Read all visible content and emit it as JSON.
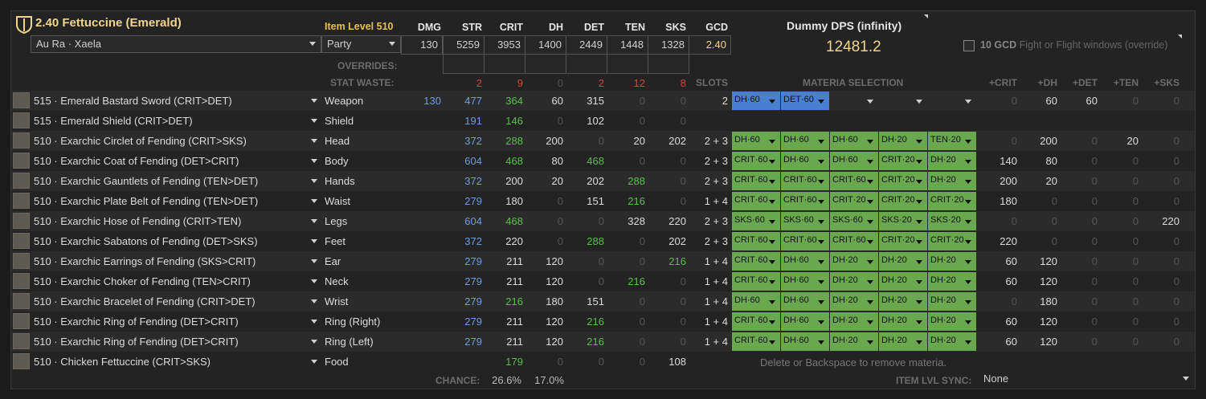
{
  "set_title": "2.40 Fettuccine (Emerald)",
  "race": "Au Ra · Xaela",
  "party": "Party",
  "item_level_label": "Item Level 510",
  "stat_headers": [
    "DMG",
    "STR",
    "CRIT",
    "DH",
    "DET",
    "TEN",
    "SKS",
    "GCD"
  ],
  "stat_values": [
    "130",
    "5259",
    "3953",
    "1400",
    "2449",
    "1448",
    "1328",
    "2.40"
  ],
  "overrides_label": "OVERRIDES:",
  "stat_waste_label": "STAT WASTE:",
  "stat_waste": [
    "2",
    "9",
    "0",
    "2",
    "12",
    "8"
  ],
  "slots_label": "SLOTS",
  "materia_label": "MATERIA SELECTION",
  "bonus_headers": [
    "+CRIT",
    "+DH",
    "+DET",
    "+TEN",
    "+SKS"
  ],
  "dps_label": "Dummy DPS (infinity)",
  "dps_value": "12481.2",
  "gcd_override_bold": "10 GCD",
  "gcd_override_rest": "Fight or Flight windows (override)",
  "rows": [
    {
      "name": "515 · Emerald Bastard Sword (CRIT>DET)",
      "slot": "Weapon",
      "dmg": "130",
      "str": "477",
      "crit": "364",
      "dh": "60",
      "det": "315",
      "ten": "0",
      "sks": "0",
      "slots": "2",
      "materia": [
        "DH·60",
        "DET·60",
        "",
        "",
        ""
      ],
      "bonus": [
        "0",
        "60",
        "60",
        "0",
        "0"
      ]
    },
    {
      "name": "515 · Emerald Shield (CRIT>DET)",
      "slot": "Shield",
      "dmg": "",
      "str": "191",
      "crit": "146",
      "dh": "0",
      "det": "102",
      "ten": "0",
      "sks": "0",
      "slots": "",
      "materia": [],
      "bonus": []
    },
    {
      "name": "510 · Exarchic Circlet of Fending (CRIT>SKS)",
      "slot": "Head",
      "dmg": "",
      "str": "372",
      "crit": "288",
      "dh": "200",
      "det": "0",
      "ten": "20",
      "sks": "202",
      "slots": "2 + 3",
      "materia": [
        "DH·60",
        "DH·60",
        "DH·60",
        "DH·20",
        "TEN·20"
      ],
      "bonus": [
        "0",
        "200",
        "0",
        "20",
        "0"
      ]
    },
    {
      "name": "510 · Exarchic Coat of Fending (DET>CRIT)",
      "slot": "Body",
      "dmg": "",
      "str": "604",
      "crit": "468",
      "dh": "80",
      "det": "468",
      "ten": "0",
      "sks": "0",
      "slots": "2 + 3",
      "materia": [
        "CRIT·60",
        "DH·60",
        "DH·60",
        "CRIT·20",
        "DH·20"
      ],
      "bonus": [
        "140",
        "80",
        "0",
        "0",
        "0"
      ]
    },
    {
      "name": "510 · Exarchic Gauntlets of Fending (TEN>DET)",
      "slot": "Hands",
      "dmg": "",
      "str": "372",
      "crit": "200",
      "dh": "20",
      "det": "202",
      "ten": "288",
      "sks": "0",
      "slots": "2 + 3",
      "materia": [
        "CRIT·60",
        "CRIT·60",
        "CRIT·60",
        "CRIT·20",
        "DH·20"
      ],
      "bonus": [
        "200",
        "20",
        "0",
        "0",
        "0"
      ]
    },
    {
      "name": "510 · Exarchic Plate Belt of Fending (TEN>DET)",
      "slot": "Waist",
      "dmg": "",
      "str": "279",
      "crit": "180",
      "dh": "0",
      "det": "151",
      "ten": "216",
      "sks": "0",
      "slots": "1 + 4",
      "materia": [
        "CRIT·60",
        "CRIT·60",
        "CRIT·20",
        "CRIT·20",
        "CRIT·20"
      ],
      "bonus": [
        "180",
        "0",
        "0",
        "0",
        "0"
      ]
    },
    {
      "name": "510 · Exarchic Hose of Fending (CRIT>TEN)",
      "slot": "Legs",
      "dmg": "",
      "str": "604",
      "crit": "468",
      "dh": "0",
      "det": "0",
      "ten": "328",
      "sks": "220",
      "slots": "2 + 3",
      "materia": [
        "SKS·60",
        "SKS·60",
        "SKS·60",
        "SKS·20",
        "SKS·20"
      ],
      "bonus": [
        "0",
        "0",
        "0",
        "0",
        "220"
      ]
    },
    {
      "name": "510 · Exarchic Sabatons of Fending (DET>SKS)",
      "slot": "Feet",
      "dmg": "",
      "str": "372",
      "crit": "220",
      "dh": "0",
      "det": "288",
      "ten": "0",
      "sks": "202",
      "slots": "2 + 3",
      "materia": [
        "CRIT·60",
        "CRIT·60",
        "CRIT·60",
        "CRIT·20",
        "CRIT·20"
      ],
      "bonus": [
        "220",
        "0",
        "0",
        "0",
        "0"
      ]
    },
    {
      "name": "510 · Exarchic Earrings of Fending (SKS>CRIT)",
      "slot": "Ear",
      "dmg": "",
      "str": "279",
      "crit": "211",
      "dh": "120",
      "det": "0",
      "ten": "0",
      "sks": "216",
      "slots": "1 + 4",
      "materia": [
        "CRIT·60",
        "DH·60",
        "DH·20",
        "DH·20",
        "DH·20"
      ],
      "bonus": [
        "60",
        "120",
        "0",
        "0",
        "0"
      ]
    },
    {
      "name": "510 · Exarchic Choker of Fending (TEN>CRIT)",
      "slot": "Neck",
      "dmg": "",
      "str": "279",
      "crit": "211",
      "dh": "120",
      "det": "0",
      "ten": "216",
      "sks": "0",
      "slots": "1 + 4",
      "materia": [
        "CRIT·60",
        "DH·60",
        "DH·20",
        "DH·20",
        "DH·20"
      ],
      "bonus": [
        "60",
        "120",
        "0",
        "0",
        "0"
      ]
    },
    {
      "name": "510 · Exarchic Bracelet of Fending (CRIT>DET)",
      "slot": "Wrist",
      "dmg": "",
      "str": "279",
      "crit": "216",
      "dh": "180",
      "det": "151",
      "ten": "0",
      "sks": "0",
      "slots": "1 + 4",
      "materia": [
        "DH·60",
        "DH·60",
        "DH·20",
        "DH·20",
        "DH·20"
      ],
      "bonus": [
        "0",
        "180",
        "0",
        "0",
        "0"
      ]
    },
    {
      "name": "510 · Exarchic Ring of Fending (DET>CRIT)",
      "slot": "Ring (Right)",
      "dmg": "",
      "str": "279",
      "crit": "211",
      "dh": "120",
      "det": "216",
      "ten": "0",
      "sks": "0",
      "slots": "1 + 4",
      "materia": [
        "CRIT·60",
        "DH·60",
        "DH·20",
        "DH·20",
        "DH·20"
      ],
      "bonus": [
        "60",
        "120",
        "0",
        "0",
        "0"
      ]
    },
    {
      "name": "510 · Exarchic Ring of Fending (DET>CRIT)",
      "slot": "Ring (Left)",
      "dmg": "",
      "str": "279",
      "crit": "211",
      "dh": "120",
      "det": "216",
      "ten": "0",
      "sks": "0",
      "slots": "1 + 4",
      "materia": [
        "CRIT·60",
        "DH·60",
        "DH·20",
        "DH·20",
        "DH·20"
      ],
      "bonus": [
        "60",
        "120",
        "0",
        "0",
        "0"
      ]
    },
    {
      "name": "510 · Chicken Fettuccine (CRIT>SKS)",
      "slot": "Food",
      "dmg": "",
      "str": "",
      "crit": "179",
      "dh": "0",
      "det": "0",
      "ten": "0",
      "sks": "108",
      "slots": "",
      "materia": [],
      "bonus": []
    }
  ],
  "hint": "Delete or Backspace to remove materia.",
  "chance_label": "CHANCE:",
  "chance_crit": "26.6%",
  "chance_dh": "17.0%",
  "sync_label": "ITEM LVL SYNC:",
  "sync_value": "None"
}
